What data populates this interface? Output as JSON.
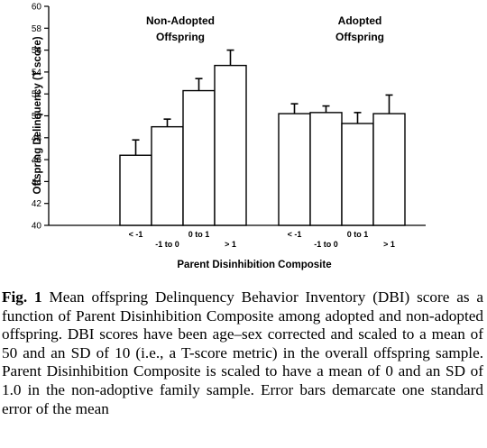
{
  "chart_data": {
    "type": "bar",
    "ylabel": "Offspring Delinquency (T score)",
    "xlabel": "Parent Disinhibition Composite",
    "ylim": [
      40,
      60
    ],
    "yticks": [
      40,
      42,
      44,
      46,
      48,
      50,
      52,
      54,
      56,
      58,
      60
    ],
    "error_bars": true,
    "groups": [
      {
        "label_lines": [
          "Non-Adopted",
          "Offspring"
        ],
        "categories": [
          "< -1",
          "-1 to 0",
          "0 to 1",
          "> 1"
        ],
        "values": [
          46.4,
          49.0,
          52.3,
          54.6
        ],
        "errors": [
          1.4,
          0.7,
          1.1,
          1.4
        ]
      },
      {
        "label_lines": [
          "Adopted",
          "Offspring"
        ],
        "categories": [
          "< -1",
          "-1 to 0",
          "0 to 1",
          "> 1"
        ],
        "values": [
          50.2,
          50.3,
          49.3,
          50.2
        ],
        "errors": [
          0.9,
          0.6,
          1.0,
          1.7
        ]
      }
    ]
  },
  "caption": {
    "label": "Fig. 1",
    "text": "Mean offspring Delinquency Behavior Inventory (DBI) score as a function of Parent Disinhibition Composite among adopted and non-adopted offspring. DBI scores have been age–sex corrected and scaled to a mean of 50 and an SD of 10 (i.e., a T-score metric) in the overall offspring sample. Parent Disinhibition Composite is scaled to have a mean of 0 and an SD of 1.0 in the non-adoptive family sample. Error bars demarcate one standard error of the mean"
  }
}
